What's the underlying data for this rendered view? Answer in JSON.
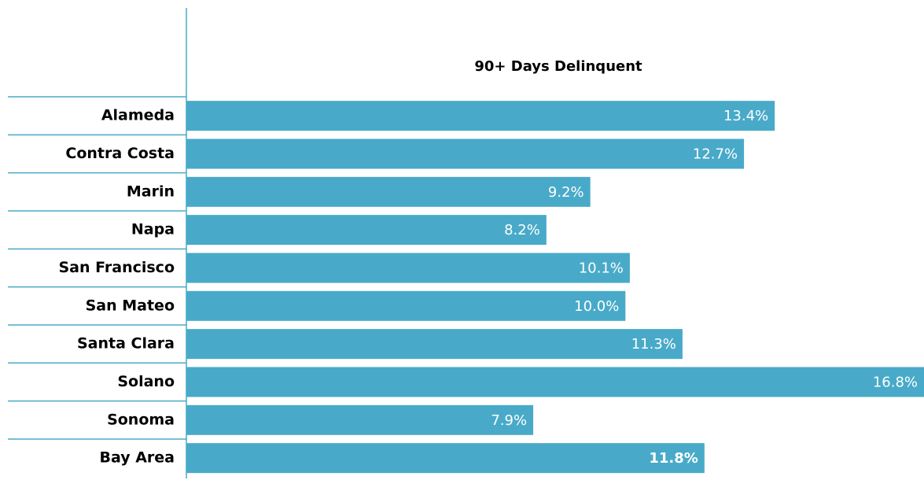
{
  "chart_data": {
    "type": "bar",
    "orientation": "horizontal",
    "title": "90+ Days Delinquent",
    "categories": [
      "Alameda",
      "Contra Costa",
      "Marin",
      "Napa",
      "San Francisco",
      "San Mateo",
      "Santa Clara",
      "Solano",
      "Sonoma",
      "Bay Area"
    ],
    "values": [
      13.4,
      12.7,
      9.2,
      8.2,
      10.1,
      10.0,
      11.3,
      16.8,
      7.9,
      11.8
    ],
    "value_labels": [
      "13.4%",
      "12.7%",
      "9.2%",
      "8.2%",
      "10.1%",
      "10.0%",
      "11.3%",
      "16.8%",
      "7.9%",
      "11.8%"
    ],
    "color": "#48aac8"
  }
}
